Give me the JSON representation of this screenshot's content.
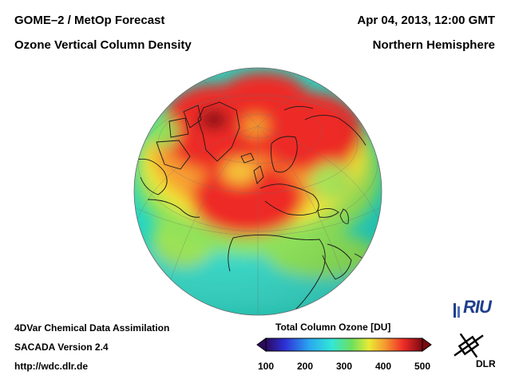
{
  "header": {
    "product": "GOME–2 / MetOp Forecast",
    "quantity": "Ozone Vertical Column Density",
    "datetime": "Apr 04, 2013, 12:00 GMT",
    "region": "Northern Hemisphere"
  },
  "footer": {
    "line1": "4DVar Chemical Data Assimilation",
    "line2": "SACADA Version 2.4",
    "line3": "http://wdc.dlr.de"
  },
  "colorbar": {
    "title": "Total Column Ozone [DU]",
    "ticks": [
      "100",
      "200",
      "300",
      "400",
      "500"
    ],
    "min": 100,
    "max": 500
  },
  "logos": {
    "riu": "RIU",
    "dlr": "DLR"
  },
  "colors": {
    "ocean_low": "#22d8c0",
    "mid_green": "#7ee05a",
    "yellow": "#f5e832",
    "orange": "#f7a234",
    "red": "#ee2a28",
    "dark_red": "#a01218",
    "riu_blue": "#1f3f8a"
  }
}
